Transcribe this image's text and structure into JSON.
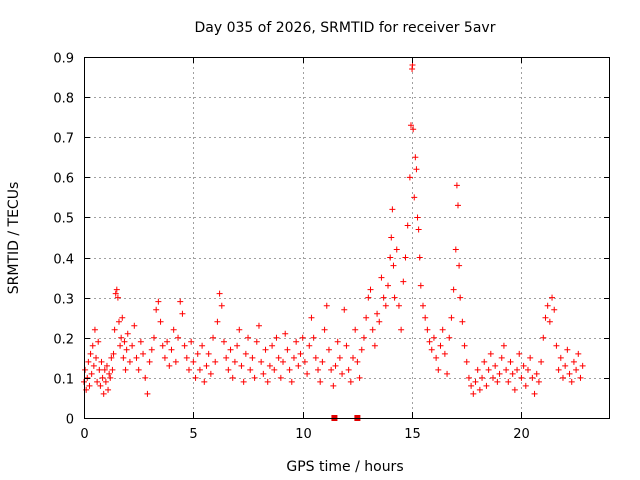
{
  "chart_data": {
    "type": "scatter",
    "title": "Day 035 of 2026, SRMTID for receiver 5avr",
    "xlabel": "GPS time / hours",
    "ylabel": "SRMTID / TECUs",
    "xlim": [
      0,
      24.05
    ],
    "ylim": [
      0,
      0.9
    ],
    "xticks": [
      0,
      5,
      10,
      15,
      20
    ],
    "yticks": [
      0,
      0.1,
      0.2,
      0.3,
      0.4,
      0.5,
      0.6,
      0.7,
      0.8,
      0.9
    ],
    "xtick_labels": [
      "0",
      "5",
      "10",
      "15",
      "20"
    ],
    "ytick_labels": [
      "0",
      "0.1",
      "0.2",
      "0.3",
      "0.4",
      "0.5",
      "0.6",
      "0.7",
      "0.8",
      "0.9"
    ],
    "grid": true,
    "marker": "+",
    "color": "#ff0000",
    "series": [
      {
        "name": "SRMTID",
        "points": [
          [
            0.0,
            0.09
          ],
          [
            0.05,
            0.12
          ],
          [
            0.1,
            0.07
          ],
          [
            0.15,
            0.1
          ],
          [
            0.2,
            0.14
          ],
          [
            0.25,
            0.08
          ],
          [
            0.3,
            0.16
          ],
          [
            0.35,
            0.11
          ],
          [
            0.4,
            0.18
          ],
          [
            0.45,
            0.13
          ],
          [
            0.5,
            0.22
          ],
          [
            0.55,
            0.15
          ],
          [
            0.6,
            0.09
          ],
          [
            0.65,
            0.19
          ],
          [
            0.7,
            0.12
          ],
          [
            0.75,
            0.08
          ],
          [
            0.8,
            0.14
          ],
          [
            0.85,
            0.1
          ],
          [
            0.9,
            0.06
          ],
          [
            0.95,
            0.12
          ],
          [
            1.0,
            0.09
          ],
          [
            1.05,
            0.13
          ],
          [
            1.1,
            0.07
          ],
          [
            1.15,
            0.11
          ],
          [
            1.2,
            0.1
          ],
          [
            1.25,
            0.15
          ],
          [
            1.3,
            0.12
          ],
          [
            1.35,
            0.16
          ],
          [
            1.4,
            0.22
          ],
          [
            1.45,
            0.31
          ],
          [
            1.5,
            0.32
          ],
          [
            1.55,
            0.3
          ],
          [
            1.6,
            0.24
          ],
          [
            1.65,
            0.18
          ],
          [
            1.7,
            0.2
          ],
          [
            1.75,
            0.25
          ],
          [
            1.8,
            0.15
          ],
          [
            1.85,
            0.19
          ],
          [
            1.9,
            0.12
          ],
          [
            1.95,
            0.17
          ],
          [
            2.0,
            0.21
          ],
          [
            2.1,
            0.14
          ],
          [
            2.2,
            0.18
          ],
          [
            2.3,
            0.23
          ],
          [
            2.4,
            0.15
          ],
          [
            2.5,
            0.12
          ],
          [
            2.6,
            0.19
          ],
          [
            2.7,
            0.16
          ],
          [
            2.8,
            0.1
          ],
          [
            2.9,
            0.06
          ],
          [
            3.0,
            0.14
          ],
          [
            3.1,
            0.17
          ],
          [
            3.2,
            0.2
          ],
          [
            3.3,
            0.27
          ],
          [
            3.4,
            0.29
          ],
          [
            3.5,
            0.24
          ],
          [
            3.6,
            0.18
          ],
          [
            3.7,
            0.15
          ],
          [
            3.8,
            0.19
          ],
          [
            3.9,
            0.13
          ],
          [
            4.0,
            0.17
          ],
          [
            4.1,
            0.22
          ],
          [
            4.2,
            0.14
          ],
          [
            4.3,
            0.2
          ],
          [
            4.4,
            0.29
          ],
          [
            4.5,
            0.26
          ],
          [
            4.6,
            0.18
          ],
          [
            4.7,
            0.15
          ],
          [
            4.8,
            0.12
          ],
          [
            4.9,
            0.19
          ],
          [
            5.0,
            0.14
          ],
          [
            5.1,
            0.1
          ],
          [
            5.2,
            0.16
          ],
          [
            5.3,
            0.12
          ],
          [
            5.4,
            0.18
          ],
          [
            5.5,
            0.09
          ],
          [
            5.6,
            0.13
          ],
          [
            5.7,
            0.16
          ],
          [
            5.8,
            0.11
          ],
          [
            5.9,
            0.2
          ],
          [
            6.0,
            0.14
          ],
          [
            6.1,
            0.24
          ],
          [
            6.2,
            0.31
          ],
          [
            6.3,
            0.28
          ],
          [
            6.4,
            0.19
          ],
          [
            6.5,
            0.15
          ],
          [
            6.6,
            0.12
          ],
          [
            6.7,
            0.17
          ],
          [
            6.8,
            0.1
          ],
          [
            6.9,
            0.14
          ],
          [
            7.0,
            0.18
          ],
          [
            7.1,
            0.22
          ],
          [
            7.2,
            0.13
          ],
          [
            7.3,
            0.09
          ],
          [
            7.4,
            0.16
          ],
          [
            7.5,
            0.2
          ],
          [
            7.6,
            0.12
          ],
          [
            7.7,
            0.15
          ],
          [
            7.8,
            0.1
          ],
          [
            7.9,
            0.19
          ],
          [
            8.0,
            0.23
          ],
          [
            8.1,
            0.14
          ],
          [
            8.2,
            0.11
          ],
          [
            8.3,
            0.17
          ],
          [
            8.4,
            0.09
          ],
          [
            8.5,
            0.13
          ],
          [
            8.6,
            0.18
          ],
          [
            8.7,
            0.12
          ],
          [
            8.8,
            0.2
          ],
          [
            8.9,
            0.15
          ],
          [
            9.0,
            0.1
          ],
          [
            9.1,
            0.14
          ],
          [
            9.2,
            0.21
          ],
          [
            9.3,
            0.17
          ],
          [
            9.4,
            0.12
          ],
          [
            9.5,
            0.09
          ],
          [
            9.6,
            0.15
          ],
          [
            9.7,
            0.19
          ],
          [
            9.8,
            0.13
          ],
          [
            9.9,
            0.16
          ],
          [
            10.0,
            0.2
          ],
          [
            10.1,
            0.14
          ],
          [
            10.2,
            0.11
          ],
          [
            10.3,
            0.18
          ],
          [
            10.4,
            0.25
          ],
          [
            10.5,
            0.2
          ],
          [
            10.6,
            0.15
          ],
          [
            10.7,
            0.12
          ],
          [
            10.8,
            0.09
          ],
          [
            10.9,
            0.14
          ],
          [
            11.0,
            0.22
          ],
          [
            11.1,
            0.28
          ],
          [
            11.2,
            0.17
          ],
          [
            11.3,
            0.12
          ],
          [
            11.4,
            0.08
          ],
          [
            11.5,
            0.13
          ],
          [
            11.6,
            0.19
          ],
          [
            11.7,
            0.15
          ],
          [
            11.8,
            0.11
          ],
          [
            11.9,
            0.27
          ],
          [
            12.0,
            0.18
          ],
          [
            12.1,
            0.12
          ],
          [
            12.2,
            0.09
          ],
          [
            12.3,
            0.15
          ],
          [
            12.4,
            0.22
          ],
          [
            12.5,
            0.14
          ],
          [
            12.6,
            0.1
          ],
          [
            12.7,
            0.17
          ],
          [
            12.8,
            0.2
          ],
          [
            12.9,
            0.25
          ],
          [
            13.0,
            0.3
          ],
          [
            13.1,
            0.32
          ],
          [
            13.2,
            0.22
          ],
          [
            13.3,
            0.18
          ],
          [
            13.4,
            0.26
          ],
          [
            13.5,
            0.24
          ],
          [
            13.6,
            0.35
          ],
          [
            13.7,
            0.3
          ],
          [
            13.8,
            0.28
          ],
          [
            13.9,
            0.33
          ],
          [
            14.0,
            0.4
          ],
          [
            14.05,
            0.45
          ],
          [
            14.1,
            0.52
          ],
          [
            14.15,
            0.38
          ],
          [
            14.2,
            0.3
          ],
          [
            14.3,
            0.42
          ],
          [
            14.4,
            0.28
          ],
          [
            14.5,
            0.22
          ],
          [
            14.6,
            0.34
          ],
          [
            14.7,
            0.4
          ],
          [
            14.8,
            0.48
          ],
          [
            14.9,
            0.6
          ],
          [
            14.95,
            0.73
          ],
          [
            15.0,
            0.87
          ],
          [
            15.02,
            0.88
          ],
          [
            15.05,
            0.72
          ],
          [
            15.1,
            0.55
          ],
          [
            15.15,
            0.65
          ],
          [
            15.2,
            0.62
          ],
          [
            15.25,
            0.5
          ],
          [
            15.3,
            0.47
          ],
          [
            15.35,
            0.4
          ],
          [
            15.4,
            0.33
          ],
          [
            15.5,
            0.28
          ],
          [
            15.6,
            0.25
          ],
          [
            15.7,
            0.22
          ],
          [
            15.8,
            0.19
          ],
          [
            15.9,
            0.17
          ],
          [
            16.0,
            0.2
          ],
          [
            16.1,
            0.15
          ],
          [
            16.2,
            0.12
          ],
          [
            16.3,
            0.18
          ],
          [
            16.4,
            0.22
          ],
          [
            16.5,
            0.16
          ],
          [
            16.6,
            0.11
          ],
          [
            16.7,
            0.2
          ],
          [
            16.8,
            0.25
          ],
          [
            16.9,
            0.32
          ],
          [
            17.0,
            0.42
          ],
          [
            17.05,
            0.58
          ],
          [
            17.1,
            0.53
          ],
          [
            17.15,
            0.38
          ],
          [
            17.2,
            0.3
          ],
          [
            17.3,
            0.24
          ],
          [
            17.4,
            0.18
          ],
          [
            17.5,
            0.14
          ],
          [
            17.6,
            0.1
          ],
          [
            17.7,
            0.08
          ],
          [
            17.8,
            0.06
          ],
          [
            17.9,
            0.09
          ],
          [
            18.0,
            0.12
          ],
          [
            18.1,
            0.07
          ],
          [
            18.2,
            0.1
          ],
          [
            18.3,
            0.14
          ],
          [
            18.4,
            0.08
          ],
          [
            18.5,
            0.12
          ],
          [
            18.6,
            0.16
          ],
          [
            18.7,
            0.1
          ],
          [
            18.8,
            0.13
          ],
          [
            18.9,
            0.09
          ],
          [
            19.0,
            0.11
          ],
          [
            19.1,
            0.15
          ],
          [
            19.2,
            0.18
          ],
          [
            19.3,
            0.12
          ],
          [
            19.4,
            0.09
          ],
          [
            19.5,
            0.14
          ],
          [
            19.6,
            0.11
          ],
          [
            19.7,
            0.07
          ],
          [
            19.8,
            0.12
          ],
          [
            19.9,
            0.16
          ],
          [
            20.0,
            0.1
          ],
          [
            20.1,
            0.13
          ],
          [
            20.2,
            0.08
          ],
          [
            20.3,
            0.12
          ],
          [
            20.4,
            0.15
          ],
          [
            20.5,
            0.1
          ],
          [
            20.6,
            0.06
          ],
          [
            20.7,
            0.11
          ],
          [
            20.8,
            0.09
          ],
          [
            20.9,
            0.14
          ],
          [
            21.0,
            0.2
          ],
          [
            21.1,
            0.25
          ],
          [
            21.2,
            0.28
          ],
          [
            21.3,
            0.24
          ],
          [
            21.4,
            0.3
          ],
          [
            21.5,
            0.27
          ],
          [
            21.6,
            0.18
          ],
          [
            21.7,
            0.12
          ],
          [
            21.8,
            0.15
          ],
          [
            21.9,
            0.1
          ],
          [
            22.0,
            0.13
          ],
          [
            22.1,
            0.17
          ],
          [
            22.2,
            0.11
          ],
          [
            22.3,
            0.09
          ],
          [
            22.4,
            0.14
          ],
          [
            22.5,
            0.12
          ],
          [
            22.6,
            0.16
          ],
          [
            22.7,
            0.1
          ],
          [
            22.8,
            0.13
          ]
        ]
      }
    ],
    "markers": [
      {
        "x": 11.45,
        "y": 0.0
      },
      {
        "x": 12.5,
        "y": 0.0
      }
    ]
  }
}
